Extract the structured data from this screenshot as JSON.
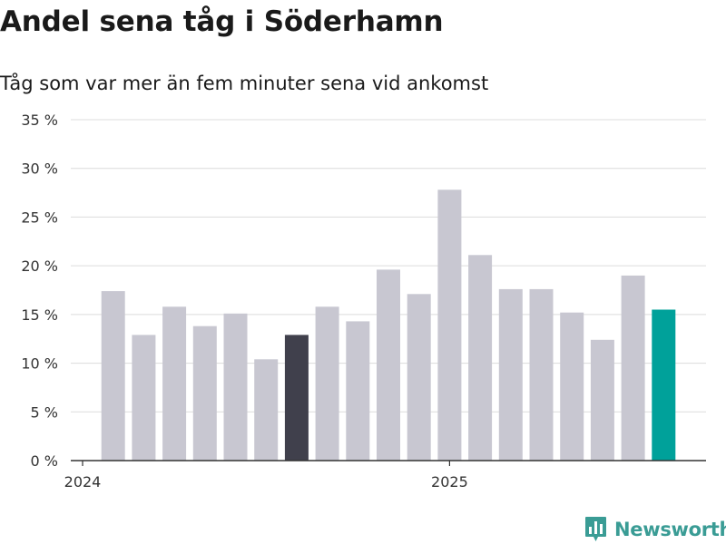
{
  "header": {
    "title": "Andel sena tåg i Söderhamn",
    "subtitle": "Tåg som var mer än fem minuter sena vid ankomst"
  },
  "chart_data": {
    "type": "bar",
    "title": "Andel sena tåg i Söderhamn",
    "subtitle": "Tåg som var mer än fem minuter sena vid ankomst",
    "xlabel": "",
    "ylabel": "",
    "ylim": [
      0,
      35
    ],
    "y_ticks": [
      0,
      5,
      10,
      15,
      20,
      25,
      30,
      35
    ],
    "y_tick_suffix": " %",
    "x_tick_labels": [
      "2024",
      "2025"
    ],
    "x_tick_positions": [
      "2024-01",
      "2025-01"
    ],
    "grid": true,
    "categories": [
      "2024-02",
      "2024-03",
      "2024-04",
      "2024-05",
      "2024-06",
      "2024-07",
      "2024-08",
      "2024-09",
      "2024-10",
      "2024-11",
      "2024-12",
      "2025-01",
      "2025-02",
      "2025-03",
      "2025-04",
      "2025-05",
      "2025-06",
      "2025-07",
      "2025-08"
    ],
    "values": [
      17.4,
      12.9,
      15.8,
      13.8,
      15.1,
      10.4,
      12.9,
      15.8,
      14.3,
      19.6,
      17.1,
      27.8,
      21.1,
      17.6,
      17.6,
      15.2,
      12.4,
      19.0,
      15.5
    ],
    "highlight": [
      {
        "category": "2024-08",
        "color": "#40404c"
      },
      {
        "category": "2025-08",
        "color": "#00a19a"
      }
    ],
    "colors": {
      "default": "#c8c7d1",
      "axis": "#333333",
      "grid": "#dcdcdc"
    }
  },
  "branding": {
    "logo_text": "Newsworthy",
    "logo_color": "#3a9c95",
    "logo_icon": "bar-chart-badge-icon"
  }
}
